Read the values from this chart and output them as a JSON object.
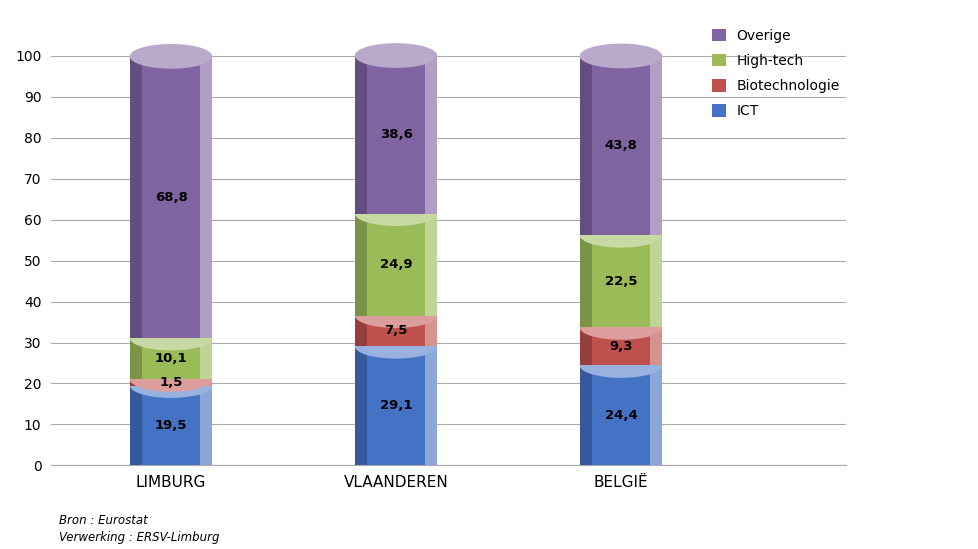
{
  "categories": [
    "LIMBURG",
    "VLAANDEREN",
    "BELGIË"
  ],
  "series": {
    "ICT": [
      19.5,
      29.1,
      24.4
    ],
    "Biotechnologie": [
      1.5,
      7.5,
      9.3
    ],
    "High-tech": [
      10.1,
      24.9,
      22.5
    ],
    "Overige": [
      68.8,
      38.6,
      43.8
    ]
  },
  "colors": {
    "ICT": "#4472C4",
    "Biotechnologie": "#C0504D",
    "High-tech": "#9BBB59",
    "Overige": "#8064A2"
  },
  "legend_order": [
    "Overige",
    "High-tech",
    "Biotechnologie",
    "ICT"
  ],
  "ylim": [
    0,
    110
  ],
  "yticks": [
    0,
    10,
    20,
    30,
    40,
    50,
    60,
    70,
    80,
    90,
    100
  ],
  "footnote_line1": "Bron : Eurostat",
  "footnote_line2": "Verwerking : ERSV-Limburg",
  "bar_width": 0.55,
  "ell_height_ratio": 0.055,
  "background_color": "#ffffff",
  "grid_color": "#aaaaaa",
  "x_positions": [
    1.0,
    2.5,
    4.0
  ],
  "xlim": [
    0.2,
    5.5
  ],
  "stack_order": [
    "ICT",
    "Biotechnologie",
    "High-tech",
    "Overige"
  ]
}
